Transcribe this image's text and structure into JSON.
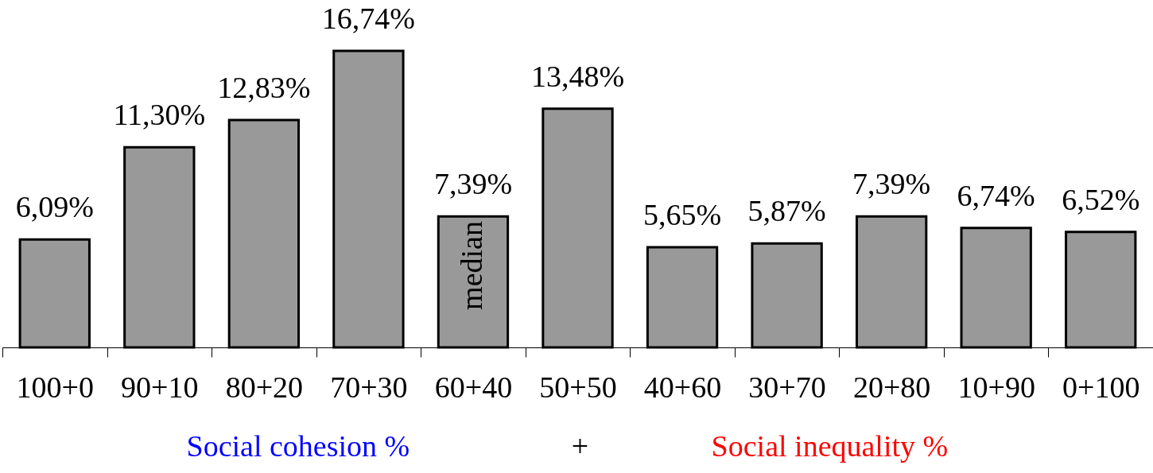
{
  "chart_data": {
    "type": "bar",
    "categories": [
      "100+0",
      "90+10",
      "80+20",
      "70+30",
      "60+40",
      "50+50",
      "40+60",
      "30+70",
      "20+80",
      "10+90",
      "0+100"
    ],
    "values": [
      6.09,
      11.3,
      12.83,
      16.74,
      7.39,
      13.48,
      5.65,
      5.87,
      7.39,
      6.74,
      6.52
    ],
    "value_labels": [
      "6,09%",
      "11,30%",
      "12,83%",
      "16,74%",
      "7,39%",
      "13,48%",
      "5,65%",
      "5,87%",
      "7,39%",
      "6,74%",
      "6,52%"
    ],
    "color": "#999999",
    "tick_labels": "x",
    "annotations": [
      "median",
      "Social cohesion %",
      "+",
      "Social inequality %"
    ]
  }
}
